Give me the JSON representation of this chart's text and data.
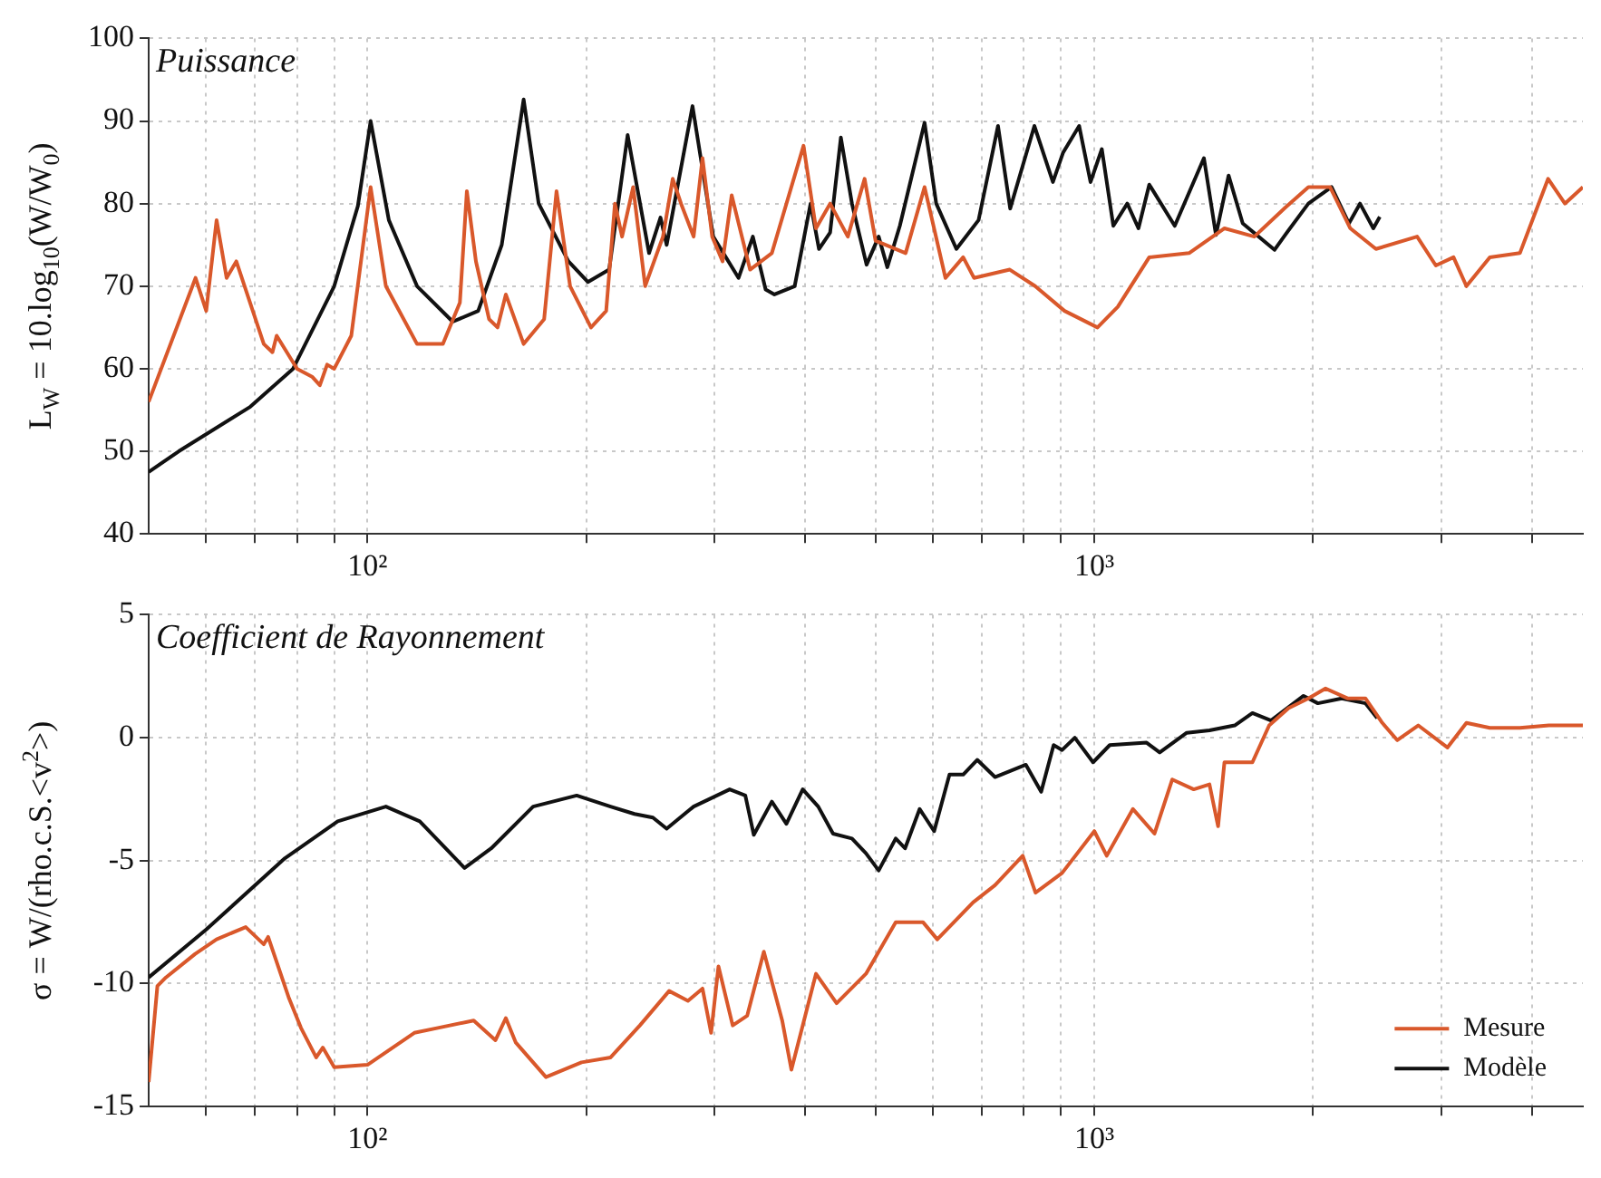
{
  "chart_data": [
    {
      "type": "line",
      "title": "Puissance",
      "ylabel": "L$_{W}$ = 10.log$_{10}$(W/W$_{0}$)",
      "log": "x",
      "grid": true,
      "marker": "none",
      "line_style": "solid",
      "xlim": [
        50,
        4700
      ],
      "xticks": [
        {
          "value": 60,
          "label": null
        },
        {
          "value": 70,
          "label": null
        },
        {
          "value": 80,
          "label": null
        },
        {
          "value": 90,
          "label": null
        },
        {
          "value": 100,
          "label": "10²"
        },
        {
          "value": 200,
          "label": null
        },
        {
          "value": 300,
          "label": null
        },
        {
          "value": 400,
          "label": null
        },
        {
          "value": 500,
          "label": null
        },
        {
          "value": 600,
          "label": null
        },
        {
          "value": 700,
          "label": null
        },
        {
          "value": 800,
          "label": null
        },
        {
          "value": 900,
          "label": null
        },
        {
          "value": 1000,
          "label": "10³"
        },
        {
          "value": 2000,
          "label": null
        },
        {
          "value": 3000,
          "label": null
        },
        {
          "value": 4000,
          "label": null
        }
      ],
      "ylim": [
        40,
        100
      ],
      "yticks": [
        40,
        50,
        60,
        70,
        80,
        90,
        100
      ],
      "series": [
        {
          "color": "#d9582b",
          "x": [
            50,
            58,
            60,
            62,
            64,
            66,
            72,
            74,
            75,
            80,
            84,
            86,
            88,
            90,
            95,
            101,
            106,
            117,
            127,
            134,
            137,
            141,
            147,
            151,
            155,
            164,
            175,
            182,
            190,
            203,
            213,
            219,
            224,
            232,
            241,
            255,
            263,
            270,
            281,
            289,
            298,
            308,
            317,
            336,
            360,
            398,
            414,
            433,
            458,
            483,
            500,
            550,
            584,
            624,
            660,
            683,
            765,
            829,
            910,
            1010,
            1077,
            1190,
            1350,
            1510,
            1660,
            1830,
            1970,
            2110,
            2250,
            2440,
            2780,
            2950,
            3120,
            3250,
            3500,
            3850,
            4210,
            4440,
            4700
          ],
          "values": [
            56,
            71,
            67,
            78,
            71,
            73,
            63,
            62,
            64,
            60,
            59,
            58,
            60.5,
            60,
            64,
            82,
            70,
            63,
            63,
            68,
            81.5,
            73,
            66,
            65,
            69,
            63,
            66,
            81.5,
            70,
            65,
            67,
            80,
            76,
            82,
            70,
            76,
            83,
            80,
            76,
            85.5,
            76,
            73,
            81,
            72,
            74,
            87,
            77,
            80,
            76,
            83,
            75.5,
            74,
            82,
            71,
            73.5,
            71,
            72,
            70,
            67,
            65,
            67.5,
            73.5,
            74,
            77,
            76,
            79.5,
            82,
            82,
            77,
            74.5,
            76,
            72.5,
            73.5,
            70,
            73.5,
            74,
            83,
            80,
            82
          ]
        },
        {
          "color": "#111111",
          "x": [
            50,
            55,
            69,
            79,
            90,
            97,
            101,
            107,
            117,
            131,
            142,
            153,
            164,
            172,
            189,
            201,
            215,
            228,
            244,
            253,
            258,
            280,
            299,
            324,
            339,
            353,
            363,
            387,
            407,
            418,
            433,
            448,
            464,
            486,
            505,
            519,
            540,
            584,
            606,
            646,
            693,
            737,
            766,
            827,
            877,
            906,
            953,
            988,
            1024,
            1062,
            1110,
            1150,
            1190,
            1290,
            1415,
            1470,
            1530,
            1600,
            1770,
            1830,
            1970,
            2120,
            2240,
            2320,
            2420,
            2470
          ],
          "values": [
            47.5,
            50,
            55.4,
            60,
            70,
            79.7,
            90,
            78,
            70,
            65.7,
            67,
            75,
            92.6,
            80,
            73,
            70.5,
            72,
            88.3,
            74,
            78.3,
            75,
            91.8,
            76,
            71,
            76,
            69.6,
            69,
            70,
            80,
            74.5,
            76.5,
            88,
            80,
            72.6,
            76,
            72.3,
            77.3,
            89.8,
            80,
            74.5,
            78,
            89.4,
            79.4,
            89.4,
            82.6,
            86.2,
            89.4,
            82.6,
            86.6,
            77.3,
            80,
            77,
            82.3,
            77.3,
            85.5,
            76.2,
            83.4,
            77.6,
            74.4,
            76.2,
            80,
            82,
            77.6,
            80,
            77,
            78.4
          ]
        }
      ]
    },
    {
      "type": "line",
      "title": "Coefficient de Rayonnement",
      "ylabel": "σ = W/(rho.c.S.<v$^{2}$>)",
      "log": "x",
      "grid": true,
      "marker": "none",
      "line_style": "solid",
      "legend": "bottom right",
      "xlim": [
        50,
        4700
      ],
      "xticks": [
        {
          "value": 60,
          "label": null
        },
        {
          "value": 70,
          "label": null
        },
        {
          "value": 80,
          "label": null
        },
        {
          "value": 90,
          "label": null
        },
        {
          "value": 100,
          "label": "10²"
        },
        {
          "value": 200,
          "label": null
        },
        {
          "value": 300,
          "label": null
        },
        {
          "value": 400,
          "label": null
        },
        {
          "value": 500,
          "label": null
        },
        {
          "value": 600,
          "label": null
        },
        {
          "value": 700,
          "label": null
        },
        {
          "value": 800,
          "label": null
        },
        {
          "value": 900,
          "label": null
        },
        {
          "value": 1000,
          "label": "10³"
        },
        {
          "value": 2000,
          "label": null
        },
        {
          "value": 3000,
          "label": null
        },
        {
          "value": 4000,
          "label": null
        }
      ],
      "ylim": [
        -15,
        5
      ],
      "yticks": [
        -15,
        -10,
        -5,
        0,
        5
      ],
      "series": [
        {
          "name": "Mesure",
          "color": "#d9582b",
          "x": [
            50,
            51.4,
            52.8,
            57.9,
            62,
            68,
            72,
            73,
            78,
            81,
            85,
            86.8,
            90,
            100,
            116,
            125,
            140,
            150,
            155,
            160,
            176,
            197,
            216,
            237,
            260,
            276,
            289,
            297,
            304,
            318,
            333,
            351,
            372,
            383,
            414,
            442,
            485,
            533,
            581,
            608,
            681,
            730,
            797,
            830,
            903,
            1000,
            1040,
            1130,
            1210,
            1280,
            1370,
            1440,
            1480,
            1510,
            1650,
            1740,
            1850,
            1970,
            2080,
            2230,
            2360,
            2490,
            2610,
            2790,
            3060,
            3250,
            3500,
            3850,
            4220,
            4700
          ],
          "values": [
            -14,
            -10.1,
            -9.75,
            -8.8,
            -8.2,
            -7.7,
            -8.4,
            -8.1,
            -10.6,
            -11.8,
            -13,
            -12.6,
            -13.4,
            -13.3,
            -12,
            -11.8,
            -11.5,
            -12.3,
            -11.4,
            -12.4,
            -13.8,
            -13.2,
            -13,
            -11.7,
            -10.3,
            -10.7,
            -10.2,
            -12,
            -9.3,
            -11.7,
            -11.3,
            -8.7,
            -11.5,
            -13.5,
            -9.6,
            -10.8,
            -9.6,
            -7.5,
            -7.5,
            -8.2,
            -6.7,
            -6,
            -4.8,
            -6.3,
            -5.5,
            -3.8,
            -4.8,
            -2.9,
            -3.9,
            -1.7,
            -2.1,
            -1.9,
            -3.6,
            -1,
            -1,
            0.5,
            1.2,
            1.6,
            2,
            1.6,
            1.6,
            0.6,
            -0.1,
            0.5,
            -0.4,
            0.6,
            0.4,
            0.4,
            0.5,
            0.5
          ]
        },
        {
          "name": "Modèle",
          "color": "#111111",
          "x": [
            50,
            60,
            77,
            91,
            106,
            118,
            136,
            148,
            169,
            194,
            216,
            233,
            247,
            258,
            281,
            315,
            331,
            340,
            360,
            377,
            397,
            417,
            437,
            464,
            485,
            505,
            533,
            549,
            575,
            602,
            632,
            660,
            690,
            730,
            805,
            845,
            879,
            903,
            940,
            996,
            1050,
            1180,
            1230,
            1340,
            1440,
            1560,
            1650,
            1750,
            1940,
            2030,
            2190,
            2360,
            2450
          ],
          "values": [
            -9.75,
            -7.8,
            -4.9,
            -3.4,
            -2.8,
            -3.4,
            -5.3,
            -4.5,
            -2.8,
            -2.35,
            -2.8,
            -3.1,
            -3.25,
            -3.7,
            -2.8,
            -2.1,
            -2.35,
            -3.95,
            -2.6,
            -3.5,
            -2.1,
            -2.8,
            -3.9,
            -4.1,
            -4.7,
            -5.4,
            -4.1,
            -4.5,
            -2.9,
            -3.8,
            -1.5,
            -1.5,
            -0.9,
            -1.6,
            -1.1,
            -2.2,
            -0.3,
            -0.5,
            0,
            -1,
            -0.3,
            -0.2,
            -0.6,
            0.2,
            0.3,
            0.5,
            1,
            0.7,
            1.7,
            1.4,
            1.6,
            1.4,
            0.8
          ]
        }
      ]
    }
  ]
}
